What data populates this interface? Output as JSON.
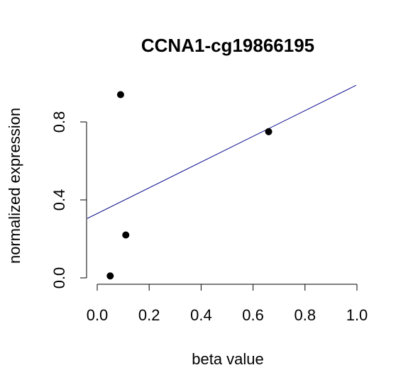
{
  "chart_data": {
    "type": "scatter",
    "title": "CCNA1-cg19866195",
    "xlabel": "beta value",
    "ylabel": "normalized expression",
    "xlim": [
      0.0,
      1.0
    ],
    "ylim": [
      0.0,
      0.8
    ],
    "x_ticks": [
      "0.0",
      "0.2",
      "0.4",
      "0.6",
      "0.8",
      "1.0"
    ],
    "y_ticks": [
      "0.0",
      "0.4",
      "0.8"
    ],
    "points": [
      {
        "x": 0.09,
        "y": 0.94
      },
      {
        "x": 0.66,
        "y": 0.75
      },
      {
        "x": 0.11,
        "y": 0.22
      },
      {
        "x": 0.05,
        "y": 0.01
      }
    ],
    "fit_line": {
      "intercept": 0.33,
      "slope": 0.66,
      "color": "#00008b"
    },
    "point_color": "#000000",
    "grid": false,
    "legend": false
  }
}
